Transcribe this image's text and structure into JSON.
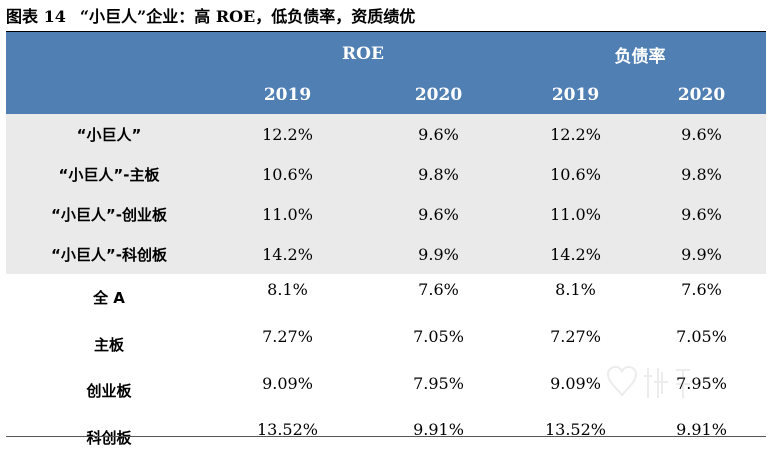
{
  "caption": {
    "number": "图表 14",
    "title": "“小巨人”企业：高 ROE，低负债率，资质绩优"
  },
  "table": {
    "groups": [
      "ROE",
      "负债率"
    ],
    "years": [
      "2019",
      "2020",
      "2019",
      "2020"
    ],
    "rows": [
      {
        "label": "“小巨人”",
        "values": [
          "12.2%",
          "9.6%",
          "12.2%",
          "9.6%"
        ]
      },
      {
        "label": "“小巨人”-主板",
        "values": [
          "10.6%",
          "9.8%",
          "10.6%",
          "9.8%"
        ]
      },
      {
        "label": "“小巨人”-创业板",
        "values": [
          "11.0%",
          "9.6%",
          "11.0%",
          "9.6%"
        ]
      },
      {
        "label": "“小巨人”-科创板",
        "values": [
          "14.2%",
          "9.9%",
          "14.2%",
          "9.9%"
        ]
      },
      {
        "label": "全 A",
        "values": [
          "8.1%",
          "7.6%",
          "8.1%",
          "7.6%"
        ]
      },
      {
        "label": "主板",
        "values": [
          "7.27%",
          "7.05%",
          "7.27%",
          "7.05%"
        ]
      },
      {
        "label": "创业板",
        "values": [
          "9.09%",
          "7.95%",
          "9.09%",
          "7.95%"
        ]
      },
      {
        "label": "科创板",
        "values": [
          "13.52%",
          "9.91%",
          "13.52%",
          "9.91%"
        ]
      }
    ]
  },
  "watermark": {
    "icon": "heart-logo-icon"
  },
  "colors": {
    "header_bg": "#4f7fb3",
    "shaded_row_bg": "#eaeaea"
  }
}
